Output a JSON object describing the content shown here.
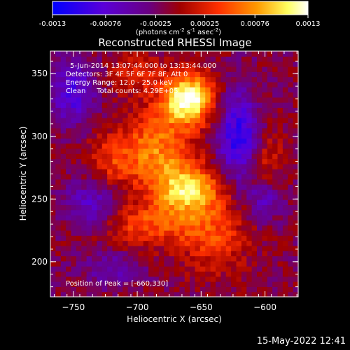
{
  "colorbar": {
    "tick_labels": [
      "-0.0013",
      "-0.00076",
      "-0.00025",
      "0.00025",
      "0.00076",
      "0.0013"
    ],
    "tick_values": [
      -0.0013,
      -0.00076,
      -0.00025,
      0.00025,
      0.00076,
      0.0013
    ],
    "range": [
      -0.0013,
      0.0013
    ],
    "units_prefix": "(photons cm",
    "units_sup1": "-2",
    "units_mid": " s",
    "units_sup2": "-1",
    "units_mid2": " asec",
    "units_sup3": "-2",
    "units_suffix": ")",
    "colormap": [
      "#0000ff",
      "#6a00c8",
      "#8a0000",
      "#ff3000",
      "#ff9000",
      "#ffff80",
      "#ffffff"
    ]
  },
  "chart_data": {
    "type": "heatmap",
    "title": "Reconstructed RHESSI Image",
    "xlabel": "Heliocentric X (arcsec)",
    "ylabel": "Heliocentric Y (arcsec)",
    "xlim": [
      -768,
      -574
    ],
    "ylim": [
      172,
      368
    ],
    "xticks": [
      -750,
      -700,
      -650,
      -600
    ],
    "yticks": [
      200,
      250,
      300,
      350
    ],
    "xtick_labels": [
      "−750",
      "−700",
      "−650",
      "−600"
    ],
    "ytick_labels": [
      "200",
      "250",
      "300",
      "350"
    ],
    "annotations": [
      "5-Jun-2014 13:07:44.000 to 13:13:44.000",
      "Detectors: 3F 4F 5F 6F 7F 8F, Att 0",
      "Energy Range: 12.0 - 25.0 keV",
      "Clean     Total counts: 4.29E+05"
    ],
    "peak_label": "Position of Peak = [-660,330]",
    "peak": [
      -660,
      330
    ],
    "sources": [
      {
        "x": -660,
        "y": 330,
        "amp": 0.0015,
        "sx": 14,
        "sy": 14
      },
      {
        "x": -660,
        "y": 258,
        "amp": 0.0011,
        "sx": 18,
        "sy": 14
      },
      {
        "x": -685,
        "y": 290,
        "amp": 0.0008,
        "sx": 18,
        "sy": 22
      },
      {
        "x": -690,
        "y": 230,
        "amp": 0.0006,
        "sx": 30,
        "sy": 12
      },
      {
        "x": -640,
        "y": 220,
        "amp": 0.0005,
        "sx": 18,
        "sy": 20
      },
      {
        "x": -720,
        "y": 280,
        "amp": 0.00045,
        "sx": 14,
        "sy": 16
      },
      {
        "x": -600,
        "y": 280,
        "amp": 0.0004,
        "sx": 10,
        "sy": 22
      },
      {
        "x": -700,
        "y": 350,
        "amp": 0.0004,
        "sx": 14,
        "sy": 10
      },
      {
        "x": -620,
        "y": 300,
        "amp": -0.0009,
        "sx": 12,
        "sy": 25
      },
      {
        "x": -750,
        "y": 335,
        "amp": -0.0007,
        "sx": 12,
        "sy": 18
      },
      {
        "x": -735,
        "y": 245,
        "amp": -0.0006,
        "sx": 16,
        "sy": 14
      },
      {
        "x": -600,
        "y": 250,
        "amp": -0.00055,
        "sx": 10,
        "sy": 12
      },
      {
        "x": -720,
        "y": 195,
        "amp": -0.0004,
        "sx": 16,
        "sy": 10
      }
    ]
  },
  "footer": {
    "timestamp": "15-May-2022 12:41"
  }
}
